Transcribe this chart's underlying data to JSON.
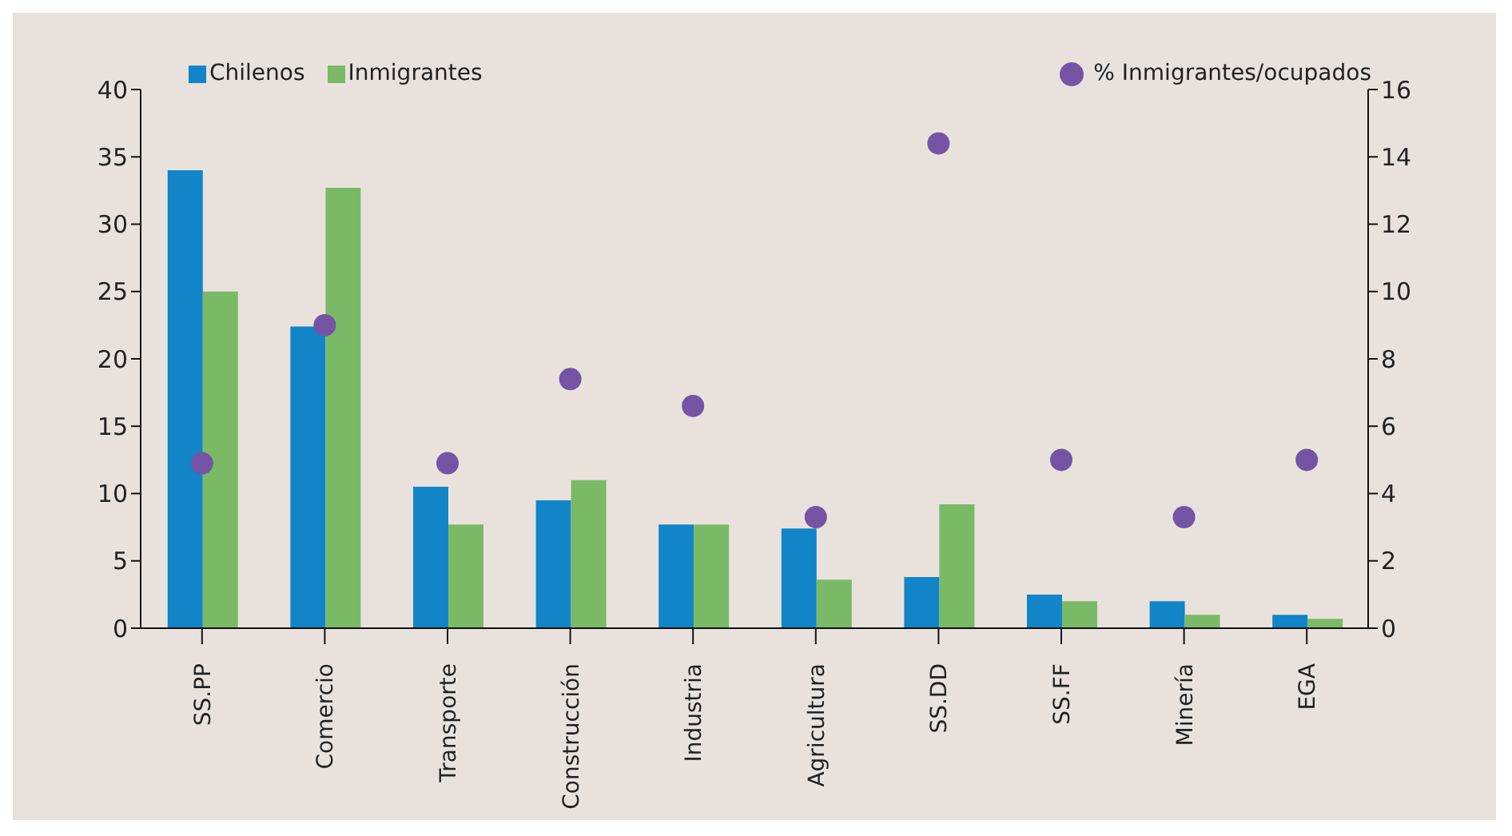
{
  "chart_data": {
    "type": "bar",
    "categories": [
      "SS.PP",
      "Comercio",
      "Transporte",
      "Construcción",
      "Industria",
      "Agricultura",
      "SS.DD",
      "SS.FF",
      "Minería",
      "EGA"
    ],
    "series": [
      {
        "name": "Chilenos",
        "color": "#1185c8",
        "values": [
          34,
          22.4,
          10.5,
          9.5,
          7.7,
          7.4,
          3.8,
          2.5,
          2.0,
          1.0
        ]
      },
      {
        "name": "Inmigrantes",
        "color": "#7aba66",
        "values": [
          25,
          32.7,
          7.7,
          11,
          7.7,
          3.6,
          9.2,
          2.0,
          1.0,
          0.7
        ]
      },
      {
        "name": "% Inmigrantes/ocupados",
        "type": "scatter",
        "axis": "y2",
        "color": "#7554a6",
        "values": [
          4.9,
          9.0,
          4.9,
          7.4,
          6.6,
          3.3,
          14.4,
          5.0,
          3.3,
          5.0
        ]
      }
    ],
    "ylim": [
      0,
      40
    ],
    "yticks": [
      0,
      5,
      10,
      15,
      20,
      25,
      30,
      35,
      40
    ],
    "y2lim": [
      0,
      16
    ],
    "y2ticks": [
      0,
      2,
      4,
      6,
      8,
      10,
      12,
      14,
      16
    ],
    "grid": false,
    "legend": "top",
    "marker": "circle"
  }
}
